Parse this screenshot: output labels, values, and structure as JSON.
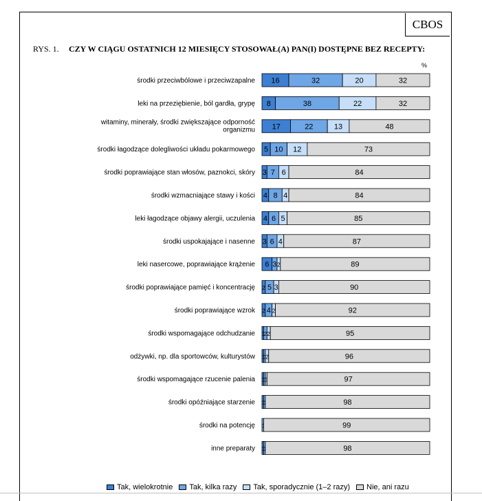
{
  "badge": "CBOS",
  "figure": {
    "label": "RYS. 1.",
    "title": "CZY W CIĄGU OSTATNICH 12 MIESIĘCY STOSOWAŁ(A) PAN(I) DOSTĘPNE BEZ RECEPTY:",
    "unit": "%"
  },
  "colors": {
    "tak_wielokrotnie": "#3d7fd1",
    "tak_kilka_razy": "#6ea6e6",
    "tak_sporadycznie": "#c6def7",
    "nie": "#d9d9d9"
  },
  "chart_data": {
    "type": "bar",
    "orientation": "horizontal",
    "stacked": true,
    "categories": [
      [
        "środki przeciwbólowe i przeciwzapalne"
      ],
      [
        "leki na przeziębienie, ból gardła, grypę"
      ],
      [
        "witaminy, minerały, środki zwiększające odporność",
        "organizmu"
      ],
      [
        "środki łagodzące dolegliwości układu pokarmowego"
      ],
      [
        "środki poprawiające stan włosów, paznokci, skóry"
      ],
      [
        "środki wzmacniające stawy i kości"
      ],
      [
        "leki łagodzące objawy alergii, uczulenia"
      ],
      [
        "środki uspokajające i nasenne"
      ],
      [
        "leki nasercowe, poprawiające krążenie"
      ],
      [
        "środki poprawiające pamięć i koncentrację"
      ],
      [
        "środki poprawiające wzrok"
      ],
      [
        "środki wspomagające odchudzanie"
      ],
      [
        "odżywki, np. dla sportowców, kulturystów"
      ],
      [
        "środki wspomagające rzucenie palenia"
      ],
      [
        "środki opóźniające starzenie"
      ],
      [
        "środki na potencję"
      ],
      [
        "inne preparaty"
      ]
    ],
    "series": [
      {
        "name": "Tak, wielokrotnie",
        "values": [
          16,
          8,
          17,
          5,
          3,
          4,
          4,
          3,
          6,
          2,
          2,
          1,
          1,
          1,
          1,
          0,
          1
        ]
      },
      {
        "name": "Tak, kilka razy",
        "values": [
          32,
          38,
          22,
          10,
          7,
          8,
          6,
          6,
          3,
          5,
          4,
          2,
          1,
          1,
          1,
          1,
          1
        ]
      },
      {
        "name": "Tak, sporadycznie (1–2 razy)",
        "values": [
          20,
          22,
          13,
          12,
          6,
          4,
          5,
          4,
          2,
          3,
          2,
          2,
          2,
          1,
          0,
          0,
          0
        ]
      },
      {
        "name": "Nie, ani razu",
        "values": [
          32,
          32,
          48,
          73,
          84,
          84,
          85,
          87,
          89,
          90,
          92,
          95,
          96,
          97,
          98,
          99,
          98
        ]
      }
    ],
    "segment_labels": [
      [
        "16",
        "32",
        "20",
        "32"
      ],
      [
        "8",
        "38",
        "22",
        "32"
      ],
      [
        "17",
        "22",
        "13",
        "48"
      ],
      [
        "5",
        "10",
        "12",
        "73"
      ],
      [
        "3",
        "7",
        "6",
        "84"
      ],
      [
        "4",
        "8",
        "4",
        "84"
      ],
      [
        "4",
        "6",
        "5",
        "85"
      ],
      [
        "3",
        "6",
        "4",
        "87"
      ],
      [
        "6",
        "3",
        "2",
        "89"
      ],
      [
        "2",
        "5",
        "3",
        "90"
      ],
      [
        "2",
        "4",
        "2",
        "92"
      ],
      [
        "1",
        "2",
        "2",
        "95"
      ],
      [
        "1",
        "1",
        "2",
        "96"
      ],
      [
        "1",
        "1",
        "1",
        "97"
      ],
      [
        "1",
        "1",
        "",
        "98"
      ],
      [
        "",
        "1",
        "",
        "99"
      ],
      [
        "1",
        "1",
        "",
        "98"
      ]
    ],
    "xlim": [
      0,
      100
    ],
    "grid": false,
    "legend_position": "bottom"
  }
}
